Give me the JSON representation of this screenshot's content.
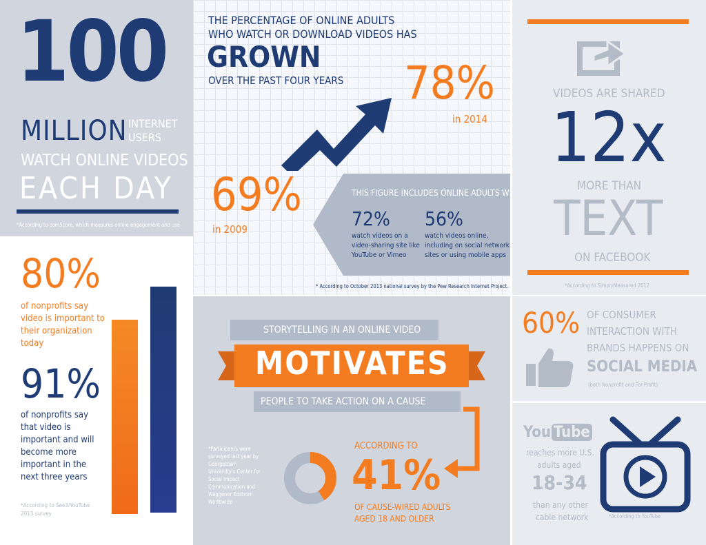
{
  "panel1": {
    "big_number": "100",
    "million": "MILLION",
    "internet": "INTERNET",
    "users": "USERS",
    "watch": "WATCH ONLINE VIDEOS",
    "each_day": "EACH DAY",
    "note": "*According to comScore, which measures online engagement and use"
  },
  "panel2": {
    "line1": "THE PERCENTAGE OF ONLINE ADULTS",
    "line2": "WHO WATCH OR DOWNLOAD VIDEOS HAS",
    "grown": "GROWN",
    "line4": "OVER THE PAST FOUR YEARS",
    "pct_2014": "78%",
    "year_2014": "in 2014",
    "pct_2009": "69%",
    "year_2009": "in 2009",
    "figure_title": "THIS FIGURE INCLUDES ONLINE ADULTS WHO:",
    "stat1_pct": "72%",
    "stat1_l1": "watch videos on a",
    "stat1_l2": "video-sharing site like",
    "stat1_l3": "YouTube or Vimeo",
    "stat2_pct": "56%",
    "stat2_l1": "watch videos online,",
    "stat2_l2": "including on social network",
    "stat2_l3": "sites or using mobile apps",
    "note": "* According to October 2013 national survey by the Pew Research Internet Project."
  },
  "panel3": {
    "shared": "VIDEOS ARE SHARED",
    "twelve_x": "12x",
    "more_than": "MORE THAN",
    "text": "TEXT",
    "on_facebook": "ON FACEBOOK",
    "note": "*According to SimplyMeasured 2012"
  },
  "panel4": {
    "pct80": "80%",
    "p80_l1": "of nonprofits say",
    "p80_l2": "video is important to",
    "p80_l3": "their organization",
    "p80_l4": "today",
    "pct91": "91%",
    "p91_l1": "of nonprofits say",
    "p91_l2": "that video is",
    "p91_l3": "important and will",
    "p91_l4": "become more",
    "p91_l5": "important in the",
    "p91_l6": "next three years",
    "note_l1": "*According to See3/YouTube",
    "note_l2": "2013 survey",
    "bar_orange_value": 80,
    "bar_navy_value": 91
  },
  "panel5": {
    "storytelling": "STORYTELLING IN AN ONLINE VIDEO",
    "motivates": "MOTIVATES",
    "people": "PEOPLE TO TAKE ACTION ON A CAUSE",
    "according_to": "ACCORDING TO",
    "pct41": "41%",
    "cause_l1": "OF CAUSE-WIRED ADULTS",
    "cause_l2": "AGED 18 AND OLDER",
    "note_lines": [
      "*Participants were",
      "surveyed last year by",
      "Georgetown",
      "University's Center for",
      "Social Impact",
      "Communication and",
      "Waggener Edstrom",
      "Worldwide"
    ],
    "donut_value": 41
  },
  "panel6": {
    "pct60": "60%",
    "l1": "OF CONSUMER",
    "l2": "INTERACTION WITH",
    "l3": "BRANDS HAPPENS ON",
    "l4": "SOCIAL MEDIA",
    "note": "(both Nonprofit and For-Profit)"
  },
  "panel7": {
    "logo_you": "You",
    "logo_tube": "Tube",
    "l1": "reaches more U.S.",
    "l2": "adults aged",
    "age": "18-34",
    "l3": "than any other",
    "l4": "cable network",
    "note": "*According to YouTube"
  },
  "colors": {
    "navy": "#1f3b73",
    "orange": "#f47c20",
    "grey_text": "#b3bbc6",
    "panel_grey": "#d1d6de"
  }
}
